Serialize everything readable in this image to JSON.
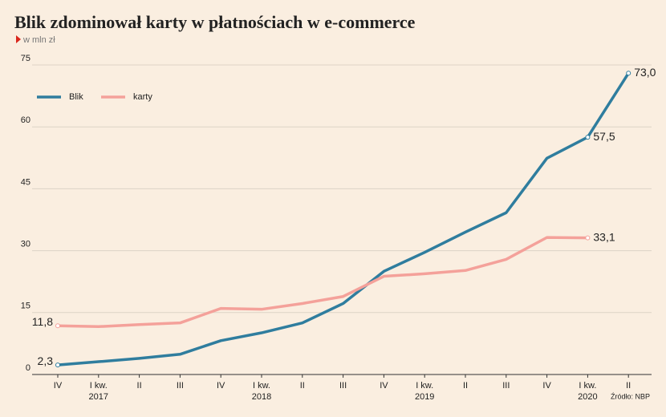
{
  "chart_data": {
    "type": "line",
    "title": "Blik zdominował karty w płatnościach w e-commerce",
    "subtitle": "w mln zł",
    "source": "Źródło: NBP",
    "categories": [
      "IV",
      "I kw.",
      "II",
      "III",
      "IV",
      "I kw.",
      "II",
      "III",
      "IV",
      "I kw.",
      "II",
      "III",
      "IV",
      "I kw.",
      "II"
    ],
    "years": [
      null,
      "2017",
      null,
      null,
      null,
      "2018",
      null,
      null,
      null,
      "2019",
      null,
      null,
      null,
      "2020",
      null
    ],
    "series": [
      {
        "name": "Blik",
        "color": "#2f7d9e",
        "values": [
          2.3,
          3.1,
          3.9,
          4.9,
          8.2,
          10.1,
          12.5,
          17.2,
          25.0,
          29.6,
          34.5,
          39.2,
          52.4,
          57.5,
          73.0
        ],
        "value_labels": [
          "2,3",
          null,
          null,
          null,
          null,
          null,
          null,
          null,
          null,
          null,
          null,
          null,
          null,
          "57,5",
          "73,0"
        ]
      },
      {
        "name": "karty",
        "color": "#f4a19a",
        "values": [
          11.8,
          11.6,
          12.1,
          12.5,
          16.0,
          15.8,
          17.2,
          18.9,
          23.8,
          24.4,
          25.2,
          27.9,
          33.2,
          33.1,
          null
        ],
        "value_labels": [
          "11,8",
          null,
          null,
          null,
          null,
          null,
          null,
          null,
          null,
          null,
          null,
          null,
          null,
          "33,1",
          null
        ]
      }
    ],
    "ylim": [
      0,
      75
    ],
    "yticks": [
      0,
      15,
      30,
      45,
      60,
      75
    ],
    "grid": true,
    "legend": "upper-left"
  }
}
